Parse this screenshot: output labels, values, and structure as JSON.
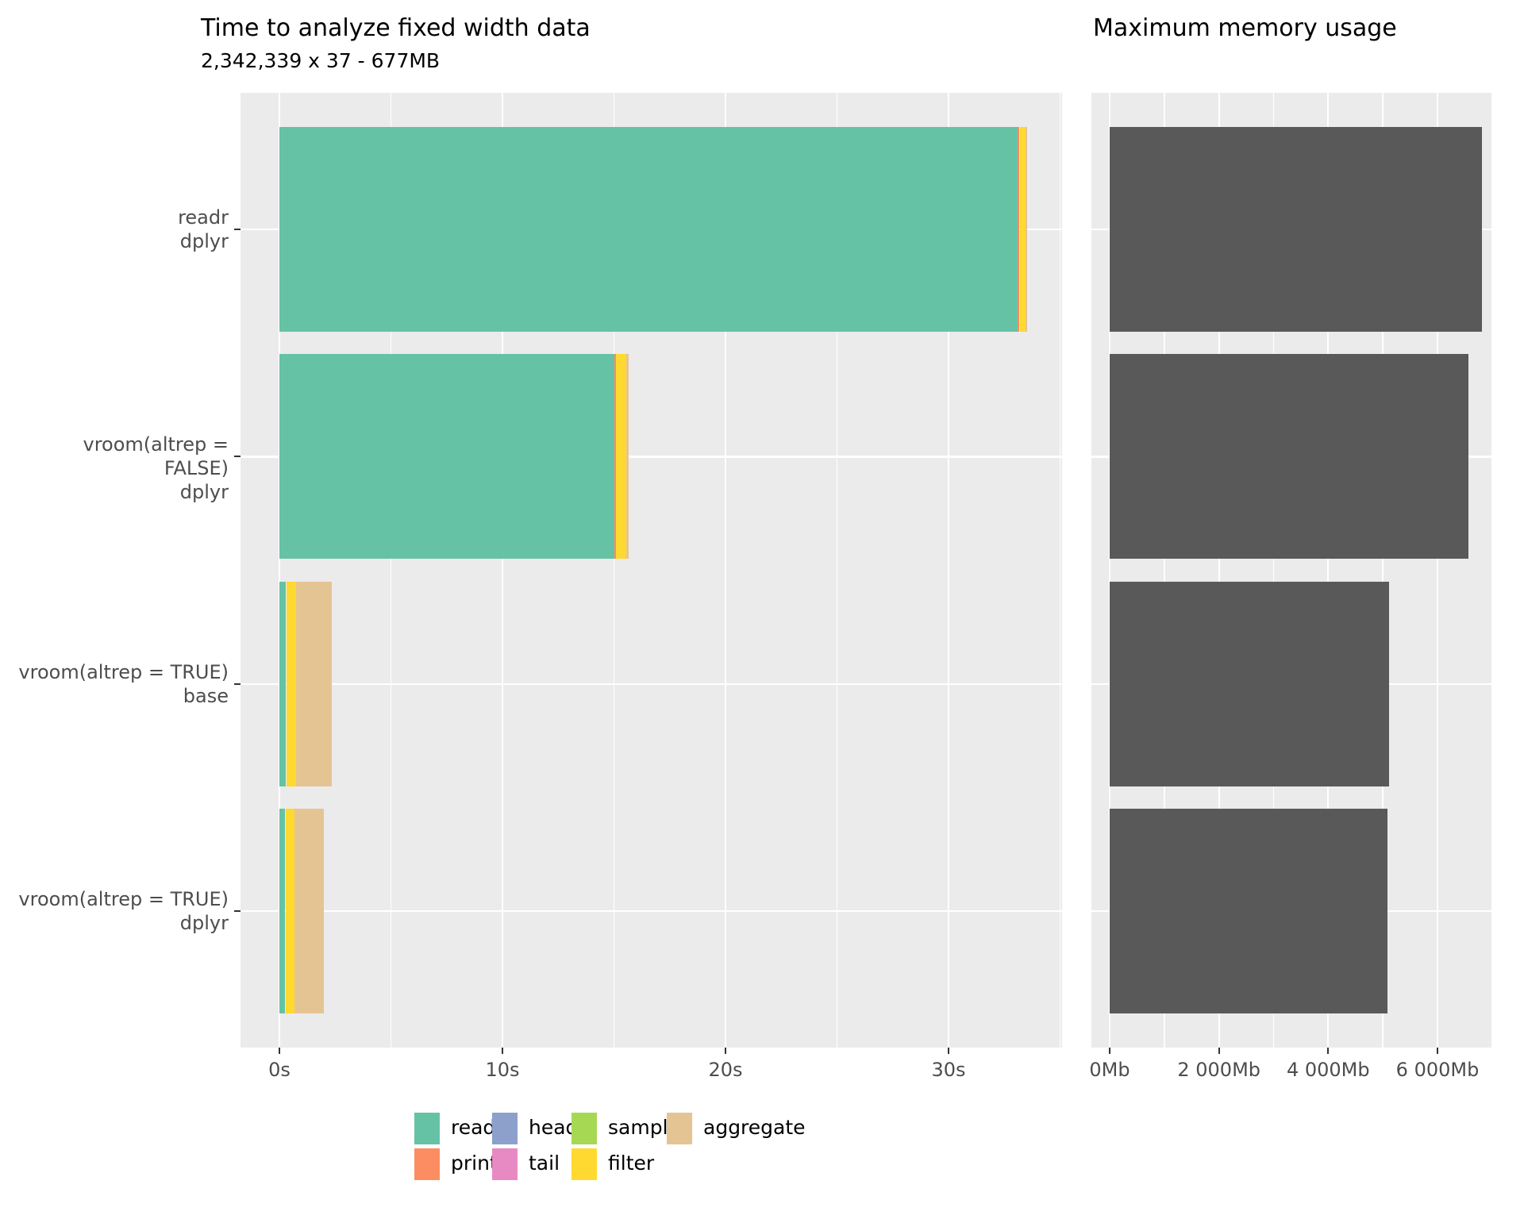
{
  "figure": {
    "background": "#FFFFFF",
    "panel_background": "#EBEBEB",
    "gridline_color": "#FFFFFF",
    "axis_text_color": "#4D4D4D",
    "tick_mark_color": "#333333"
  },
  "chart_data": [
    {
      "type": "bar",
      "orientation": "horizontal",
      "stacked": true,
      "title": "Time to analyze fixed width data",
      "subtitle": "2,342,339 x 37 - 677MB",
      "categories": [
        {
          "line1": "readr",
          "line2": "dplyr"
        },
        {
          "line1": "vroom(altrep = FALSE)",
          "line2": "dplyr"
        },
        {
          "line1": "vroom(altrep = TRUE)",
          "line2": "base"
        },
        {
          "line1": "vroom(altrep = TRUE)",
          "line2": "dplyr"
        }
      ],
      "series": [
        {
          "name": "read",
          "color": "#66C2A5",
          "values": [
            33.1,
            15.0,
            0.28,
            0.25
          ]
        },
        {
          "name": "print",
          "color": "#FC8D62",
          "values": [
            0.08,
            0.07,
            0.02,
            0.02
          ]
        },
        {
          "name": "head",
          "color": "#8DA0CB",
          "values": [
            0.01,
            0.01,
            0.005,
            0.005
          ]
        },
        {
          "name": "tail",
          "color": "#E78AC3",
          "values": [
            0.01,
            0.01,
            0.005,
            0.005
          ]
        },
        {
          "name": "sample",
          "color": "#A6D854",
          "values": [
            0.01,
            0.01,
            0.01,
            0.01
          ]
        },
        {
          "name": "filter",
          "color": "#FFD92F",
          "values": [
            0.25,
            0.45,
            0.42,
            0.4
          ]
        },
        {
          "name": "aggregate",
          "color": "#E5C494",
          "values": [
            0.05,
            0.1,
            1.6,
            1.3
          ]
        }
      ],
      "totals_seconds": [
        33.51,
        15.65,
        2.34,
        1.99
      ],
      "x_ticks": [
        {
          "label": "0s",
          "value": 0
        },
        {
          "label": "10s",
          "value": 10
        },
        {
          "label": "20s",
          "value": 20
        },
        {
          "label": "30s",
          "value": 30
        }
      ],
      "xlim": [
        -1.75,
        35.2
      ],
      "grid": {
        "major": [
          0,
          10,
          20,
          30
        ],
        "minor": [
          5,
          15,
          25,
          35
        ],
        "show": true
      },
      "legend": {
        "position": "bottom",
        "rows": 2,
        "items": [
          {
            "label": "read",
            "color": "#66C2A5"
          },
          {
            "label": "print",
            "color": "#FC8D62"
          },
          {
            "label": "head",
            "color": "#8DA0CB"
          },
          {
            "label": "tail",
            "color": "#E78AC3"
          },
          {
            "label": "sample",
            "color": "#A6D854"
          },
          {
            "label": "filter",
            "color": "#FFD92F"
          },
          {
            "label": "aggregate",
            "color": "#E5C494"
          }
        ]
      }
    },
    {
      "type": "bar",
      "orientation": "horizontal",
      "stacked": false,
      "title": "Maximum memory usage",
      "categories": [
        {
          "line1": "readr",
          "line2": "dplyr"
        },
        {
          "line1": "vroom(altrep = FALSE)",
          "line2": "dplyr"
        },
        {
          "line1": "vroom(altrep = TRUE)",
          "line2": "base"
        },
        {
          "line1": "vroom(altrep = TRUE)",
          "line2": "dplyr"
        }
      ],
      "series": [
        {
          "name": "max_memory_mb",
          "color": "#595959",
          "values": [
            6820,
            6560,
            5120,
            5090
          ]
        }
      ],
      "x_ticks": [
        {
          "label": "0Mb",
          "value": 0
        },
        {
          "label": "2 000Mb",
          "value": 2000
        },
        {
          "label": "4 000Mb",
          "value": 4000
        },
        {
          "label": "6 000Mb",
          "value": 6000
        }
      ],
      "xlim": [
        -341,
        7000
      ],
      "grid": {
        "major": [
          0,
          2000,
          4000,
          6000
        ],
        "minor": [
          1000,
          3000,
          5000
        ],
        "show": true
      },
      "legend": {
        "position": "none",
        "rows": 0,
        "items": []
      }
    }
  ]
}
